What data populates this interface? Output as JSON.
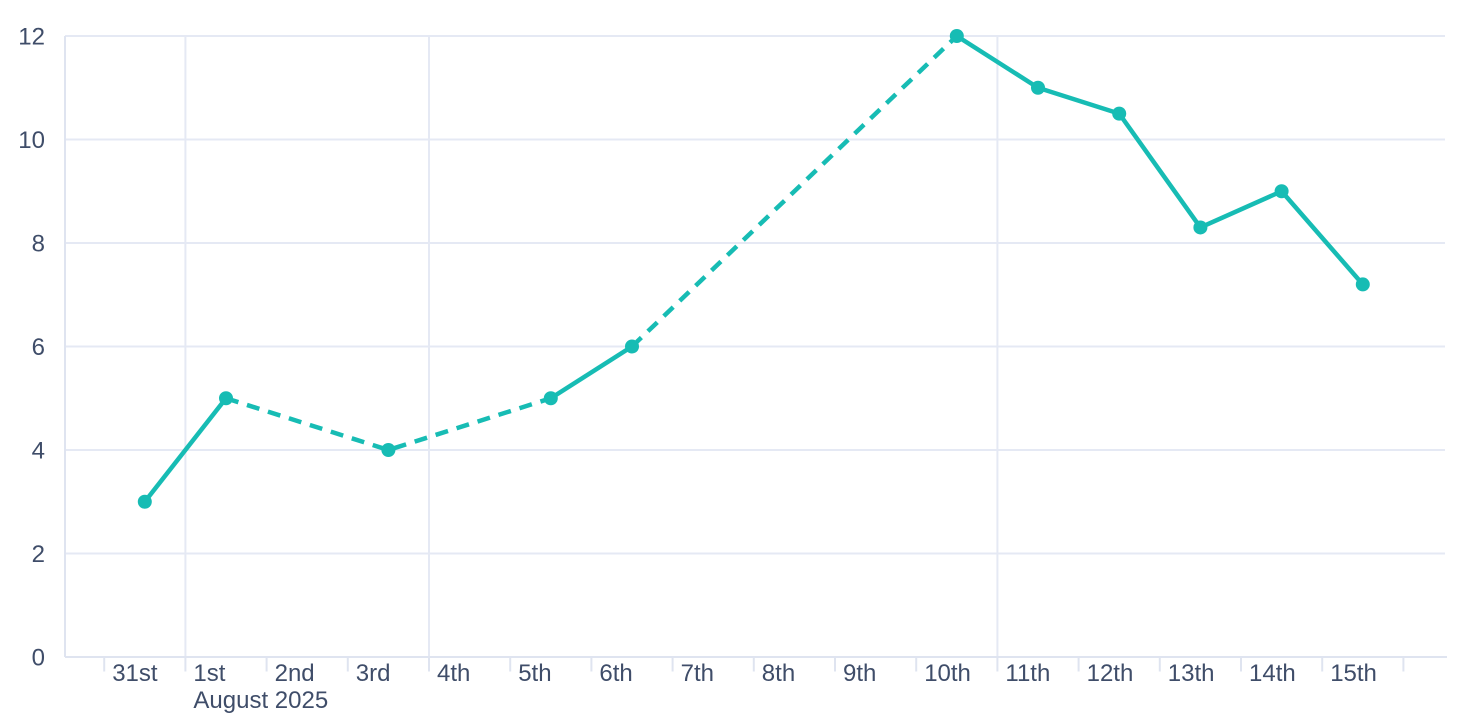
{
  "chart_data": {
    "type": "line",
    "title": "",
    "x_axis": {
      "tick_labels": [
        "31st",
        "1st",
        "2nd",
        "3rd",
        "4th",
        "5th",
        "6th",
        "7th",
        "8th",
        "9th",
        "10th",
        "11th",
        "12th",
        "13th",
        "14th",
        "15th"
      ],
      "month_label": "August 2025",
      "month_label_under": "1st",
      "unlabeled_trailing_ticks": 1
    },
    "y_axis": {
      "ticks": [
        0,
        2,
        4,
        6,
        8,
        10,
        12
      ],
      "range": [
        0,
        12
      ]
    },
    "grid": {
      "horizontal": true,
      "vertical_at_labels": [
        "1st",
        "4th",
        "11th"
      ],
      "legend": "none"
    },
    "series": [
      {
        "name": "daily-values",
        "color": "#17bcb4",
        "marker": "circle",
        "points": [
          {
            "x": "31st",
            "value": 3
          },
          {
            "x": "1st",
            "value": 5
          },
          {
            "x": "3rd",
            "value": 4
          },
          {
            "x": "5th",
            "value": 5
          },
          {
            "x": "6th",
            "value": 6
          },
          {
            "x": "10th",
            "value": 12
          },
          {
            "x": "11th",
            "value": 11
          },
          {
            "x": "12th",
            "value": 10.5
          },
          {
            "x": "13th",
            "value": 8.3
          },
          {
            "x": "14th",
            "value": 9
          },
          {
            "x": "15th",
            "value": 7.2
          }
        ],
        "segments": [
          {
            "style": "solid",
            "from": "31st",
            "to": "1st"
          },
          {
            "style": "dashed",
            "from": "1st",
            "to": "5th"
          },
          {
            "style": "solid",
            "from": "5th",
            "to": "6th"
          },
          {
            "style": "dashed",
            "from": "6th",
            "to": "10th"
          },
          {
            "style": "solid",
            "from": "10th",
            "to": "15th"
          }
        ]
      }
    ],
    "colors": {
      "background": "#ffffff",
      "text": "#3f4d69",
      "gridline": "#e5e9f4",
      "axis": "#dfe4f0",
      "series": "#17bcb4"
    }
  }
}
